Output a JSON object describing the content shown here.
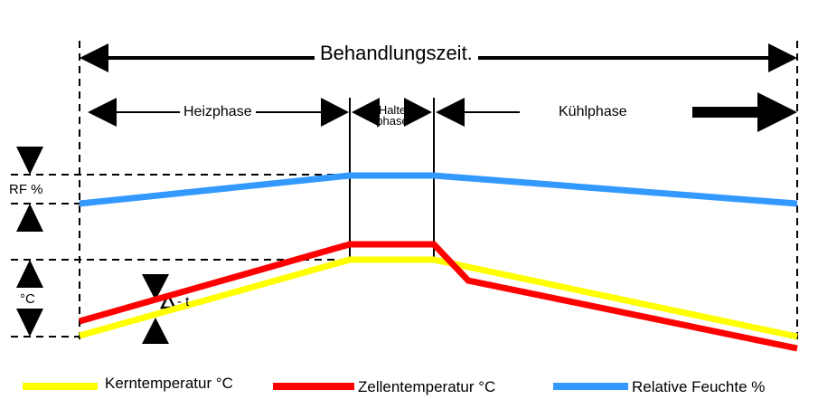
{
  "title": "Behandlungszeit.",
  "phases": {
    "heat": "Heizphase",
    "hold_line1": "Halte",
    "hold_line2": "phase",
    "cool": "Kühlphase"
  },
  "y_labels": {
    "humidity": "RF %",
    "temperature": "°C",
    "delta": "- t"
  },
  "legend": [
    {
      "label": "Kerntemperatur °C",
      "color": "#ffff00"
    },
    {
      "label": "Zellentemperatur °C",
      "color": "#ff0000"
    },
    {
      "label": "Relative Feuchte %",
      "color": "#3399ff"
    }
  ],
  "colors": {
    "core": "#ffff00",
    "cell": "#ff0000",
    "humidity": "#3399ff",
    "lines": "#000000"
  }
}
